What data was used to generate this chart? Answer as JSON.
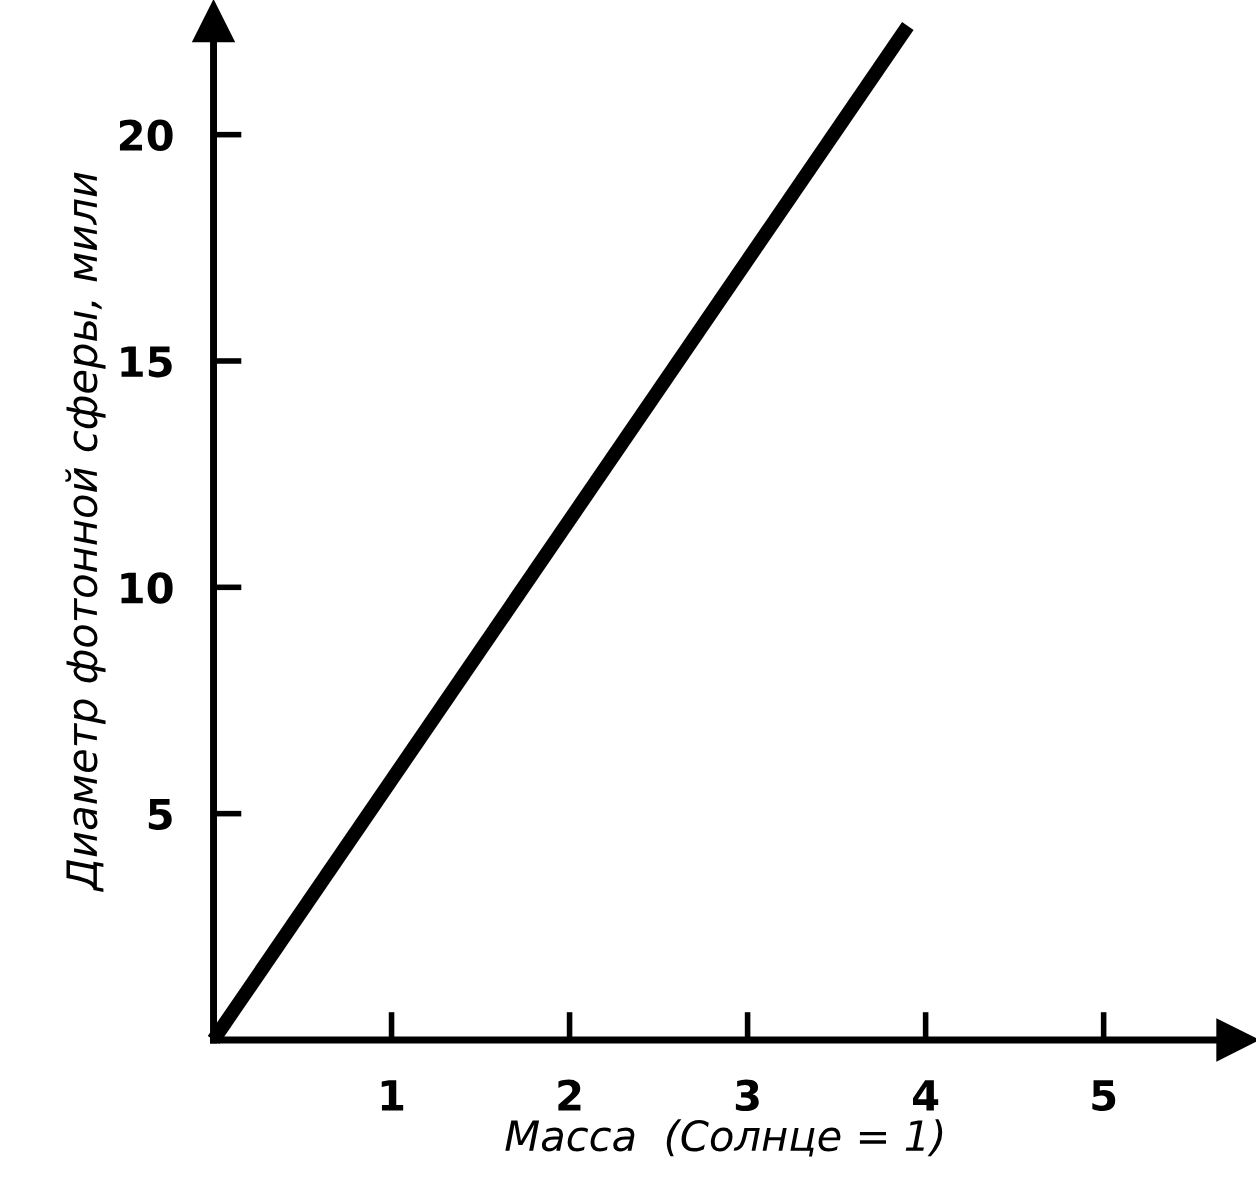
{
  "chart_data": {
    "type": "line",
    "xlabel": "Масса  (Солнце = 1)",
    "ylabel": "Диаметр фотонной сферы, мили",
    "x": [
      0,
      3.9
    ],
    "series": [
      {
        "color": "#000000",
        "values": [
          0,
          22.4
        ]
      }
    ],
    "xlim": [
      0,
      5.75
    ],
    "ylim": [
      0,
      22.5
    ],
    "xticks": [
      1,
      2,
      3,
      4,
      5
    ],
    "yticks": [
      5,
      10,
      15,
      20
    ],
    "grid": false,
    "marker": "none",
    "line_style": "solid"
  }
}
